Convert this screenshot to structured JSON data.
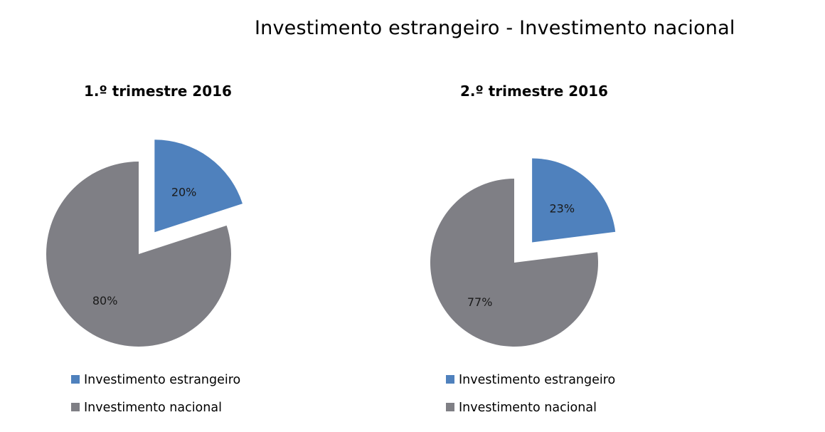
{
  "title": "Investimento estrangeiro - Investimento nacional",
  "colors": {
    "estrangeiro": "#4f81bd",
    "nacional": "#7f7f85"
  },
  "chart_data": [
    {
      "type": "pie",
      "title": "1.º trimestre 2016",
      "slices": [
        {
          "label": "Investimento estrangeiro",
          "value": 20,
          "display": "20%",
          "exploded": true
        },
        {
          "label": "Investimento nacional",
          "value": 80,
          "display": "80%",
          "exploded": false
        }
      ],
      "legend": [
        "Investimento estrangeiro",
        "Investimento nacional"
      ],
      "legend_position": "bottom"
    },
    {
      "type": "pie",
      "title": "2.º trimestre 2016",
      "slices": [
        {
          "label": "Investimento estrangeiro",
          "value": 23,
          "display": "23%",
          "exploded": true
        },
        {
          "label": "Investimento nacional",
          "value": 77,
          "display": "77%",
          "exploded": false
        }
      ],
      "legend": [
        "Investimento estrangeiro",
        "Investimento nacional"
      ],
      "legend_position": "bottom"
    }
  ]
}
